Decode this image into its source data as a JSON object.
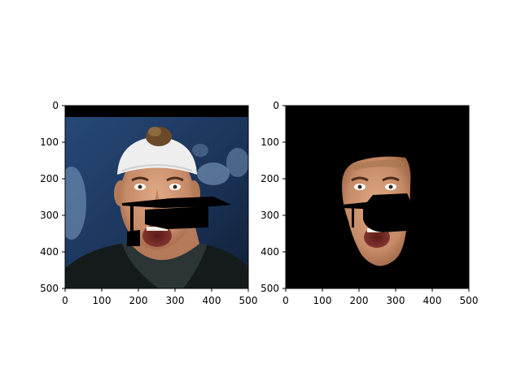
{
  "figure": {
    "panels": [
      {
        "name": "original-face-image",
        "description_hidden": true,
        "x_ticks": [
          "0",
          "100",
          "200",
          "300",
          "400",
          "500"
        ],
        "y_ticks": [
          "0",
          "100",
          "200",
          "300",
          "400",
          "500"
        ],
        "xlim": [
          0,
          500
        ],
        "ylim": [
          500,
          0
        ]
      },
      {
        "name": "segmented-face-image",
        "description_hidden": true,
        "x_ticks": [
          "0",
          "100",
          "200",
          "300",
          "400",
          "500"
        ],
        "y_ticks": [
          "0",
          "100",
          "200",
          "300",
          "400",
          "500"
        ],
        "xlim": [
          0,
          500
        ],
        "ylim": [
          500,
          0
        ]
      }
    ],
    "colors": {
      "background_blue": "#1f3a63",
      "skin": "#c98f6c",
      "cap": "#f2f2f2",
      "shirt": "#161c1c",
      "mask_black": "#000000"
    }
  }
}
